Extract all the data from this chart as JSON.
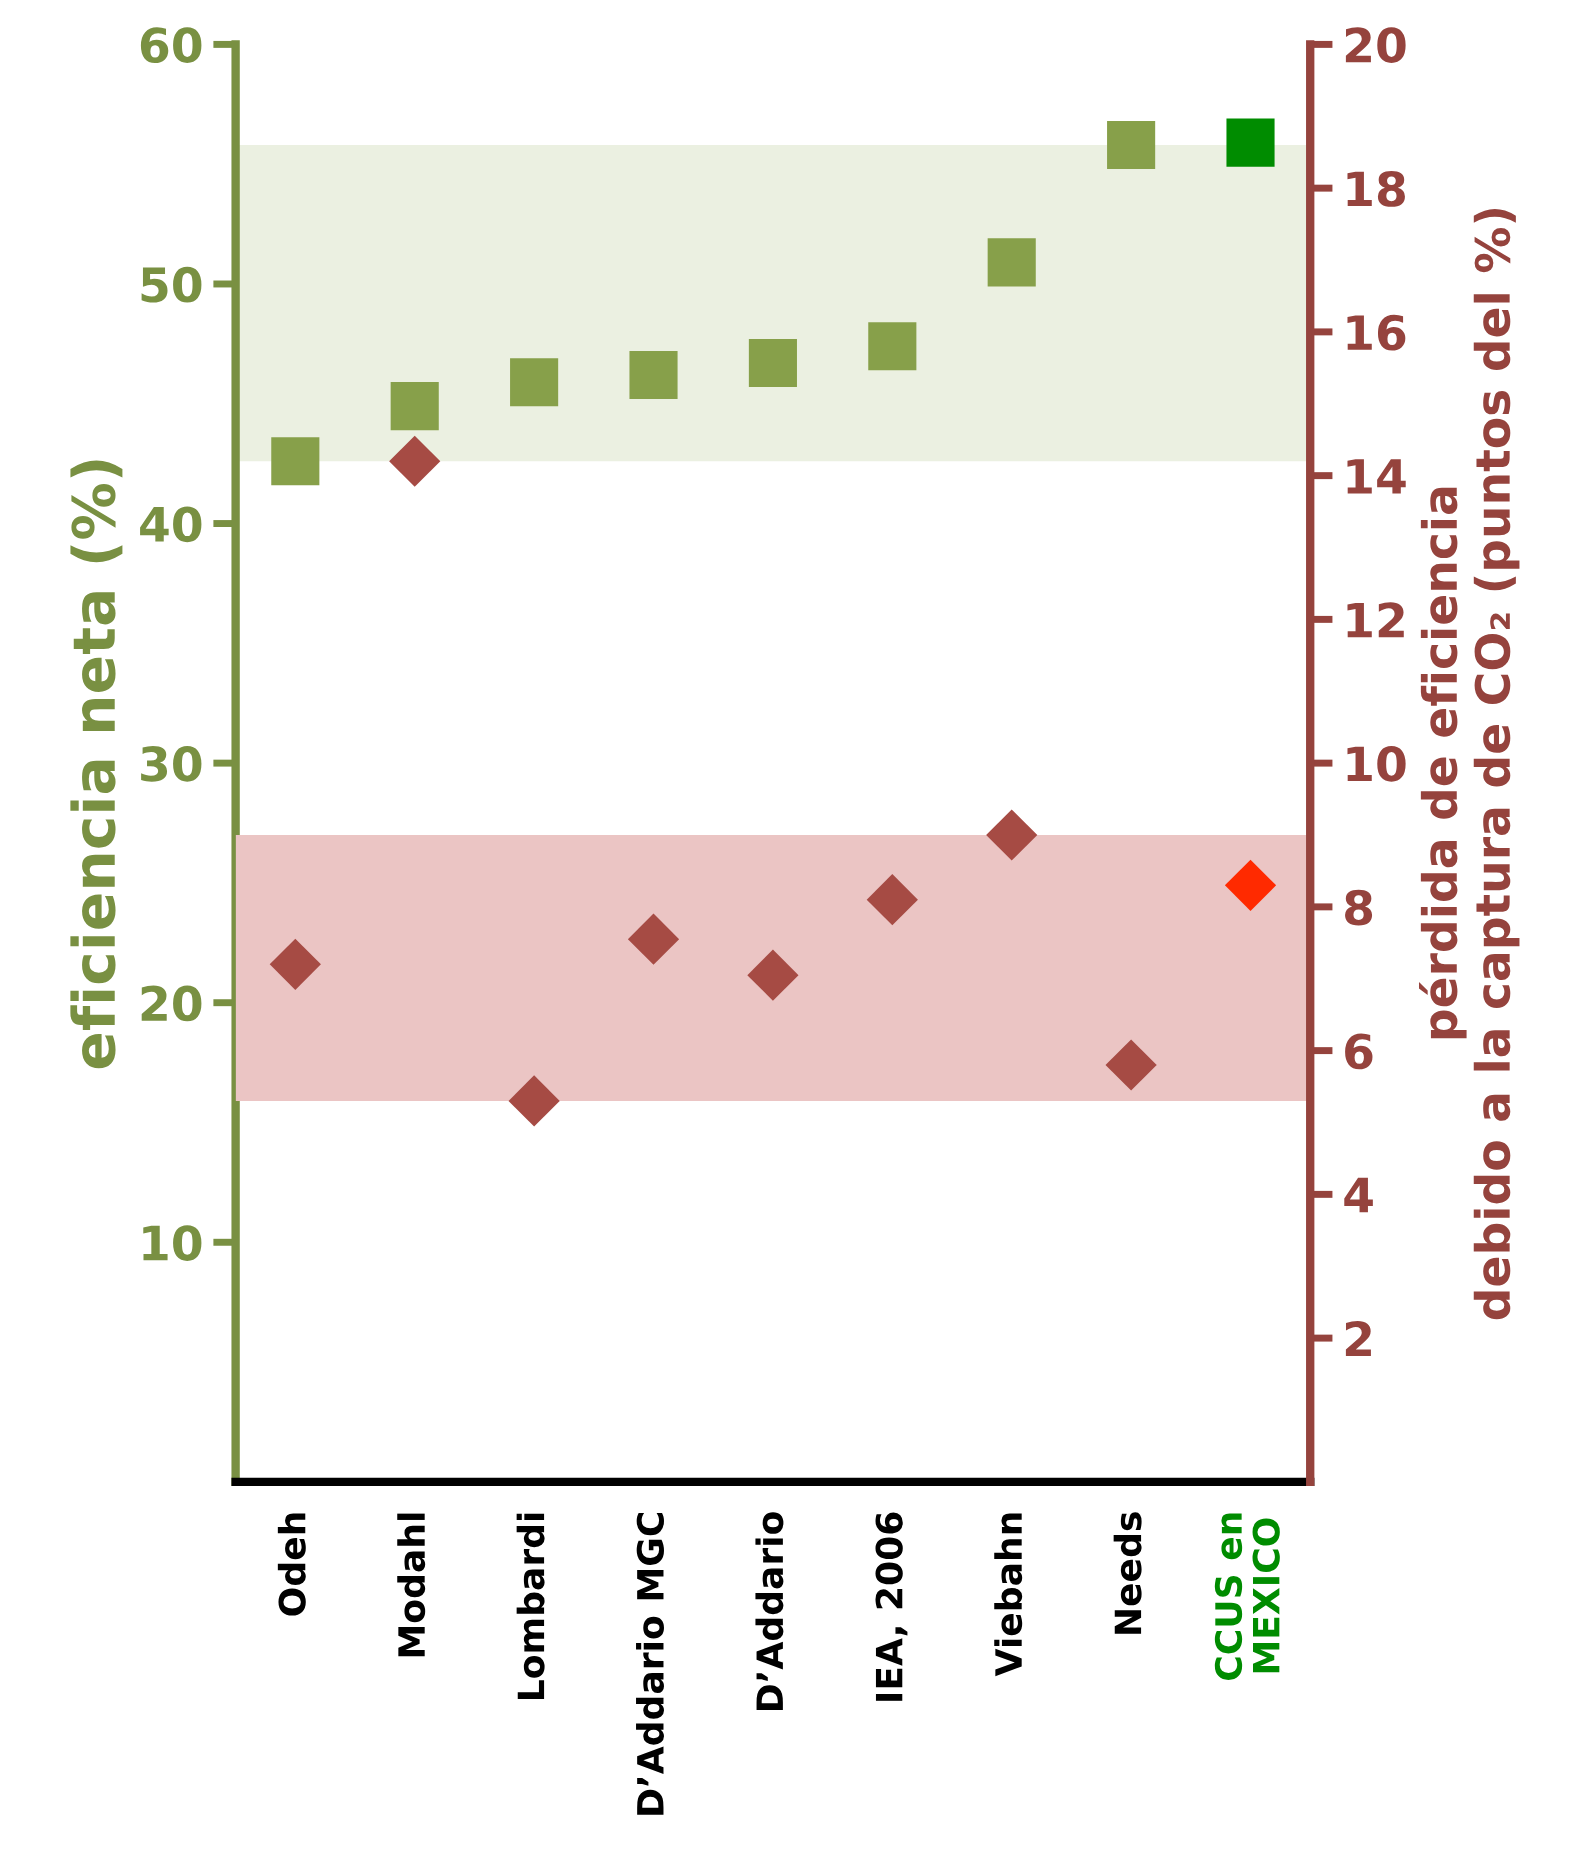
{
  "chart_data": {
    "type": "scatter",
    "categories": [
      "Odeh",
      "Modahl",
      "Lombardi",
      "D’Addario MGC",
      "D’Addario",
      "IEA, 2006",
      "Viebahn",
      "Needs",
      "CCUS en\nMEXICO"
    ],
    "ylabel": "eficiencia neta (%)",
    "y2label": "pérdida de eficiencia\ndebido a la captura de CO₂ (puntos del %)",
    "ylim": [
      0,
      60
    ],
    "yticks": [
      10,
      20,
      30,
      40,
      50,
      60
    ],
    "y2lim": [
      0,
      20
    ],
    "y2ticks": [
      2,
      4,
      6,
      8,
      10,
      12,
      14,
      16,
      18,
      20
    ],
    "series": [
      {
        "color": "#87a04a",
        "marker": "square",
        "colors": [
          "#87a04a",
          "#87a04a",
          "#87a04a",
          "#87a04a",
          "#87a04a",
          "#87a04a",
          "#87a04a",
          "#87a04a",
          "#008c00"
        ],
        "values": [
          42.6,
          44.9,
          45.9,
          46.2,
          46.7,
          47.4,
          50.9,
          55.8,
          55.9
        ]
      },
      {
        "color": "#a64b44",
        "marker": "diamond",
        "axis": "y2",
        "colors": [
          "#a64b44",
          "#a64b44",
          "#a64b44",
          "#a64b44",
          "#a64b44",
          "#a64b44",
          "#a64b44",
          "#a64b44",
          "#ff2a00"
        ],
        "values": [
          7.2,
          14.2,
          5.3,
          7.55,
          7.05,
          8.1,
          9.0,
          5.8,
          8.3
        ]
      }
    ],
    "bands": [
      {
        "axis": "y",
        "from": 42.6,
        "to": 55.8,
        "color": "#ebf0e1"
      },
      {
        "axis": "y2",
        "from": 5.3,
        "to": 9.0,
        "color": "#ebc5c4"
      }
    ],
    "grid": false,
    "legend": false
  }
}
